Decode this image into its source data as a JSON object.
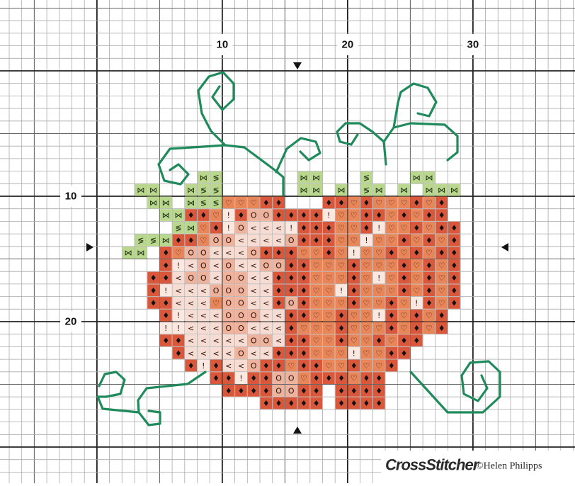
{
  "axis_labels": {
    "columns": [
      "10",
      "20",
      "30"
    ],
    "rows": [
      "10",
      "20"
    ]
  },
  "key": {
    "g": {
      "symbol": "⋈",
      "fill": "#b9d88e",
      "ink": "#1b2a10"
    },
    "z": {
      "symbol": "≶",
      "fill": "#b9d88e",
      "ink": "#1b2a10"
    },
    "d": {
      "symbol": "♦",
      "fill": "#d9573b",
      "ink": "#111111"
    },
    "h": {
      "symbol": "♡",
      "fill": "#e8865a",
      "ink": "#2a1208"
    },
    "o": {
      "symbol": "O",
      "fill": "#efb29d",
      "ink": "#2a1208"
    },
    "l": {
      "symbol": "<",
      "fill": "#f7dcd3",
      "ink": "#2a1208"
    },
    "i": {
      "symbol": "!",
      "fill": "#fbe9e1",
      "ink": "#2a1208"
    }
  },
  "pattern": {
    "rows": [
      "......gz......gg...z...gg...",
      ".gg..gzz......gg.g.zg.g.ggg.",
      "..gg.gzzhhhdd...ddhdhhhdhd..",
      "...ggddhidooddddihhddhdhdd..",
      "....zghdiolllidddhhdihhdhdd.",
      ".zzgddhoollllodddhhihhdhdhd.",
      "gg.dhoolllodddhhdhihhdhdhdd.",
      "...dilolollooddhhhdhhhdhdhd.",
      "..ddlooloolldddhhhdhihdhdhd.",
      "..dilllooolldddhhidhhhdhdhd.",
      "..ddlllhoolldodhhhdhhdhidhd.",
      "...dilllooollddhhdhhidhdhd..",
      "...iillloollldhhhdhhhdhdhd..",
      "...ddllllloolddhhdhhdhdd....",
      "....dllllolldddhhhihhdd.....",
      ".....didlloddhddhhdhhd......",
      ".......ddiddoohdddhdd.......",
      "........ddddoodd.dddd.......",
      "...........ddddd.dddd......."
    ]
  },
  "brand": "CrossStitcher",
  "credit": "©Helen Philipps"
}
